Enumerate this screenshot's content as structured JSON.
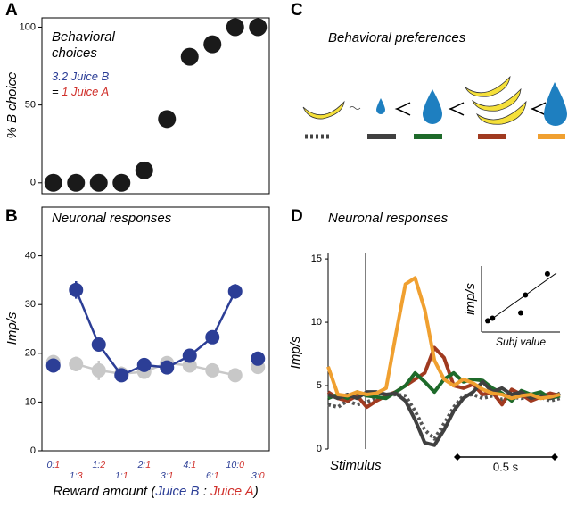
{
  "chart_data": [
    {
      "type": "scatter",
      "label": "A",
      "title": [
        "Behavioral",
        "choices"
      ],
      "note": [
        "3.2 Juice B",
        "=",
        "1 Juice A"
      ],
      "note_colors": [
        "#2c3e96",
        "#000000",
        "#d0302b"
      ],
      "ylabel": "% B choice",
      "categories": [
        "0:1",
        "1:3",
        "1:2",
        "1:1",
        "2:1",
        "3:1",
        "4:1",
        "6:1",
        "10:0",
        "3:0"
      ],
      "values": [
        0,
        0,
        0,
        0,
        8,
        41,
        81,
        89,
        100,
        100
      ],
      "color": "#1a1a1a",
      "ylim": [
        -7,
        106
      ],
      "yticks": [
        0,
        50,
        100
      ]
    },
    {
      "type": "line",
      "label": "B",
      "title": "Neuronal responses",
      "ylabel": "Imp/s",
      "xlabel": [
        "Reward amount (",
        "Juice B",
        " : ",
        "Juice A",
        ")"
      ],
      "xlabel_colors": [
        "#000000",
        "#2c3e96",
        "#000000",
        "#d0302b",
        "#000000"
      ],
      "category_colors": [
        "#2c3e96",
        "#d0302b"
      ],
      "categories": [
        "0:1",
        "1:3",
        "1:2",
        "1:1",
        "2:1",
        "3:1",
        "4:1",
        "6:1",
        "10:0",
        "3:0"
      ],
      "series": [
        {
          "color": "#c8c8c8",
          "line": true,
          "values": [
            null,
            17.8,
            16.5,
            15.8,
            16.2,
            18,
            17.5,
            16.5,
            15.5,
            null
          ],
          "errors": [
            null,
            1.5,
            2,
            1.5,
            1.2,
            1.2,
            1.2,
            0.8,
            0.8,
            null
          ]
        },
        {
          "color": "#c8c8c8",
          "line": false,
          "values": [
            18.2,
            null,
            null,
            null,
            null,
            null,
            null,
            null,
            null,
            17.2
          ],
          "errors": [
            1.2,
            null,
            null,
            null,
            null,
            null,
            null,
            null,
            null,
            1.2
          ]
        },
        {
          "color": "#2c3e96",
          "line": true,
          "values": [
            null,
            33,
            21.8,
            15.5,
            17.6,
            17.1,
            19.5,
            23.3,
            32.7,
            null
          ],
          "errors": [
            null,
            1.8,
            1.2,
            1.3,
            1,
            1,
            1.2,
            1,
            1.5,
            null
          ]
        },
        {
          "color": "#2c3e96",
          "line": false,
          "values": [
            17.5,
            null,
            null,
            null,
            null,
            null,
            null,
            null,
            null,
            18.9
          ],
          "errors": [
            null,
            null,
            null,
            null,
            null,
            null,
            null,
            null,
            null,
            null
          ]
        }
      ],
      "ylim": [
        0,
        50
      ],
      "yticks": [
        0,
        10,
        20,
        30,
        40
      ]
    },
    {
      "type": "line",
      "label": "D",
      "title": "Neuronal responses",
      "ylabel": "Imp/s",
      "annotations": [
        "Stimulus",
        "0.5 s"
      ],
      "series": [
        {
          "color": "#555555",
          "dash": true,
          "line": true,
          "values": [
            3.5,
            3.3,
            3.8,
            3.5,
            3.7,
            4,
            4.2,
            4.3,
            4.2,
            3,
            1.5,
            0.8,
            2,
            3.3,
            4.2,
            4.3,
            4,
            4.2,
            3.9,
            4.1,
            4,
            4.2,
            4.1,
            3.8,
            4
          ]
        },
        {
          "color": "#a03a20",
          "dash": false,
          "line": true,
          "values": [
            4.5,
            4,
            3.8,
            4.2,
            3.3,
            3.8,
            4.2,
            4.5,
            5,
            5.5,
            6,
            8,
            7.2,
            5,
            4.8,
            5.1,
            4.3,
            4.5,
            3.5,
            4.7,
            4.3,
            3.8,
            4.1,
            4.4,
            4.2
          ]
        },
        {
          "color": "#1e6a2a",
          "dash": false,
          "line": true,
          "values": [
            4,
            4.3,
            4,
            4.5,
            4.2,
            4.1,
            4,
            4.5,
            5,
            6,
            5.3,
            4.5,
            5.5,
            6,
            5.3,
            5.5,
            5.4,
            4.8,
            4.4,
            3.8,
            4.6,
            4.3,
            4.5,
            4,
            4.2
          ]
        },
        {
          "color": "#404040",
          "dash": false,
          "line": true,
          "values": [
            4.3,
            4,
            4.3,
            4,
            4.5,
            4.5,
            4.3,
            4.4,
            3.8,
            2.3,
            0.5,
            0.3,
            1.5,
            3,
            4,
            4.5,
            5.3,
            4.5,
            4.8,
            4.3,
            4.5,
            4,
            4.2,
            4,
            4.4
          ]
        },
        {
          "color": "#f0a030",
          "dash": false,
          "line": true,
          "values": [
            6.5,
            4.3,
            4.2,
            4.5,
            4.3,
            4.4,
            4.8,
            9,
            13,
            13.5,
            11,
            7,
            5.5,
            5,
            5.5,
            5.2,
            4.7,
            4.4,
            4.3,
            4,
            4.2,
            4.3,
            4,
            4.1,
            4.3
          ]
        }
      ],
      "ylim": [
        0,
        15.5
      ],
      "yticks": [
        0,
        5,
        10,
        15
      ]
    },
    {
      "type": "scatter",
      "ylabel": "imp/s",
      "xlabel": "Subj value",
      "color": "#000000",
      "x": [
        0.08,
        0.14,
        0.5,
        0.56,
        0.84
      ],
      "values": [
        0.17,
        0.21,
        0.29,
        0.56,
        0.88
      ],
      "xlim": [
        0,
        1
      ],
      "ylim": [
        0,
        1
      ]
    }
  ],
  "preferences": {
    "label": "C",
    "title": "Behavioral preferences"
  }
}
